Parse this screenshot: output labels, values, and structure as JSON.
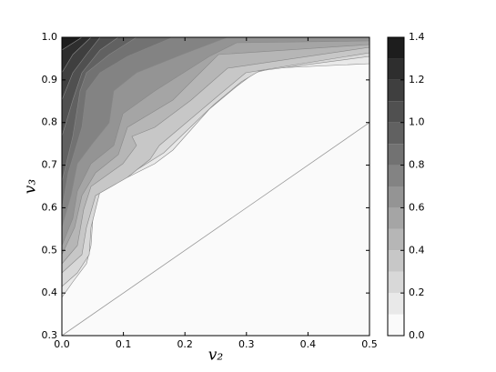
{
  "chart_data": {
    "type": "contour",
    "xlabel": "v₂",
    "ylabel": "v₃",
    "xlim": [
      0,
      0.5
    ],
    "ylim": [
      0.3,
      1.0
    ],
    "xticks": [
      {
        "value": 0,
        "label": "0.0"
      },
      0.1,
      0.2,
      0.3,
      0.4,
      0.5
    ],
    "yticks": [
      0.3,
      0.4,
      0.5,
      0.6,
      0.7,
      0.8,
      0.9,
      {
        "value": 1.0,
        "label": "1.0"
      }
    ],
    "levels": [
      0,
      0.1,
      0.2,
      0.3,
      0.4,
      0.5,
      0.6,
      0.7,
      0.8,
      0.9,
      1.0,
      1.1,
      1.2,
      1.3,
      1.4
    ],
    "colorbar_ticks": [
      {
        "value": 0,
        "label": "0.0"
      },
      0.2,
      0.4,
      0.6,
      0.8,
      {
        "value": 1.0,
        "label": "1.0"
      },
      1.2,
      1.4
    ],
    "colormap": "gray"
  }
}
